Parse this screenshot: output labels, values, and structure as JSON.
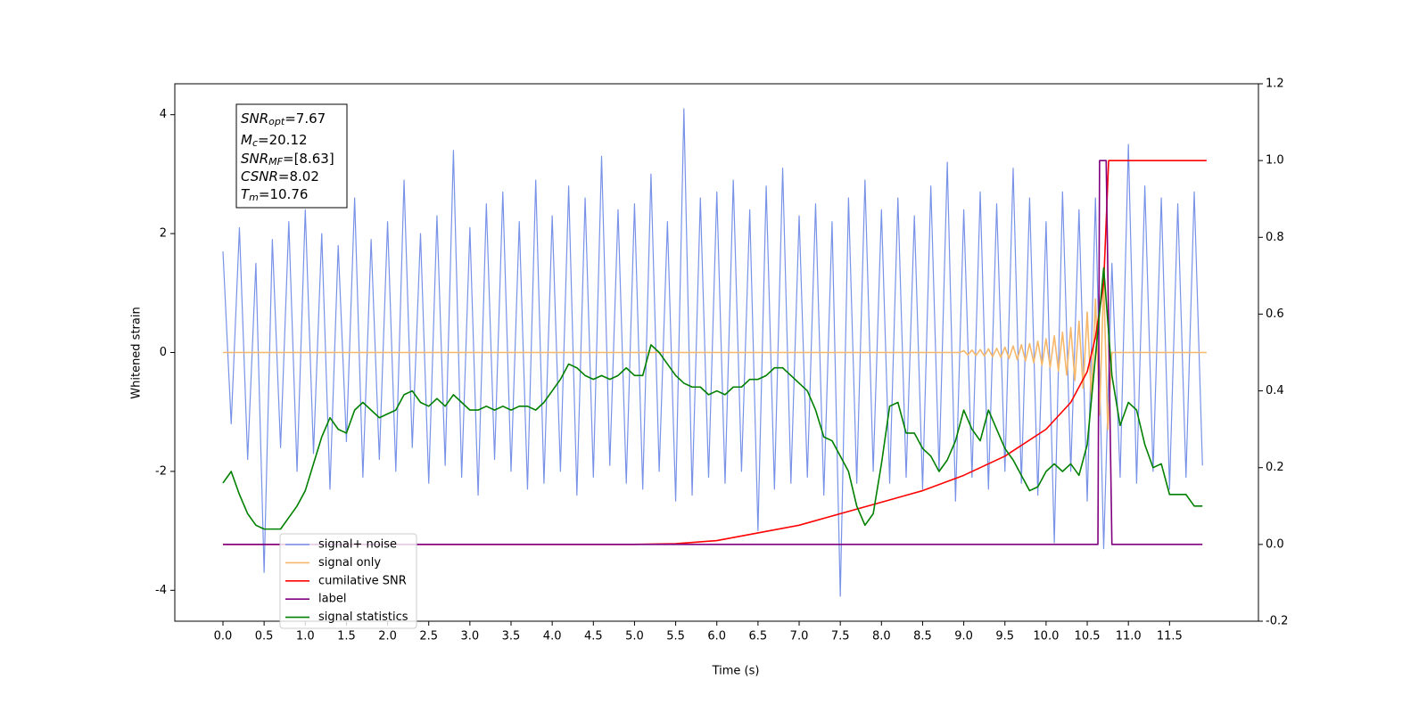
{
  "chart_data": {
    "type": "line",
    "xlabel": "Time (s)",
    "ylabel": "Whitened strain",
    "xlim": [
      -0.585,
      12.58
    ],
    "ylim": [
      -4.52,
      4.52
    ],
    "y2lim": [
      -0.2,
      1.2
    ],
    "xticks": [
      {
        "value": 0,
        "label": "0.0"
      },
      0.5,
      {
        "value": 1,
        "label": "1.0"
      },
      1.5,
      {
        "value": 2,
        "label": "2.0"
      },
      2.5,
      {
        "value": 3,
        "label": "3.0"
      },
      3.5,
      {
        "value": 4,
        "label": "4.0"
      },
      4.5,
      {
        "value": 5,
        "label": "5.0"
      },
      5.5,
      {
        "value": 6,
        "label": "6.0"
      },
      6.5,
      {
        "value": 7,
        "label": "7.0"
      },
      7.5,
      {
        "value": 8,
        "label": "8.0"
      },
      8.5,
      {
        "value": 9,
        "label": "9.0"
      },
      9.5,
      {
        "value": 10,
        "label": "10.0"
      },
      10.5,
      {
        "value": 11,
        "label": "11.0"
      },
      11.5
    ],
    "yticks": [
      -4,
      -2,
      0,
      2,
      4
    ],
    "y2ticks": [
      -0.2,
      {
        "value": 0,
        "label": "0.0"
      },
      0.2,
      0.4,
      0.6,
      0.8,
      {
        "value": 1,
        "label": "1.0"
      },
      1.2
    ],
    "legend": "lower left",
    "x": [
      0,
      0.1,
      0.2,
      0.3,
      0.4,
      0.5,
      0.6,
      0.7,
      0.8,
      0.9,
      1,
      1.1,
      1.2,
      1.3,
      1.4,
      1.5,
      1.6,
      1.7,
      1.8,
      1.9,
      2,
      2.1,
      2.2,
      2.3,
      2.4,
      2.5,
      2.6,
      2.7,
      2.8,
      2.9,
      3,
      3.1,
      3.2,
      3.3,
      3.4,
      3.5,
      3.6,
      3.7,
      3.8,
      3.9,
      4,
      4.1,
      4.2,
      4.3,
      4.4,
      4.5,
      4.6,
      4.7,
      4.8,
      4.9,
      5,
      5.1,
      5.2,
      5.3,
      5.4,
      5.5,
      5.6,
      5.7,
      5.8,
      5.9,
      6,
      6.1,
      6.2,
      6.3,
      6.4,
      6.5,
      6.6,
      6.7,
      6.8,
      6.9,
      7,
      7.1,
      7.2,
      7.3,
      7.4,
      7.5,
      7.6,
      7.7,
      7.8,
      7.9,
      8,
      8.1,
      8.2,
      8.3,
      8.4,
      8.5,
      8.6,
      8.7,
      8.8,
      8.9,
      9,
      9.1,
      9.2,
      9.3,
      9.4,
      9.5,
      9.6,
      9.7,
      9.8,
      9.9,
      10,
      10.1,
      10.2,
      10.3,
      10.4,
      10.5,
      10.6,
      10.7,
      10.8,
      10.9,
      11,
      11.1,
      11.2,
      11.3,
      11.4,
      11.5,
      11.6,
      11.7,
      11.8,
      11.9
    ],
    "series": [
      {
        "name": "signal+ noise",
        "color": "#7892e8",
        "values": [
          1.7,
          -1.2,
          2.1,
          -1.8,
          1.5,
          -3.7,
          1.9,
          -1.6,
          2.2,
          -2.0,
          2.4,
          -1.7,
          2.0,
          -2.3,
          1.8,
          -1.5,
          2.6,
          -2.1,
          1.9,
          -1.8,
          2.2,
          -2.0,
          2.9,
          -1.6,
          2.0,
          -2.2,
          2.3,
          -1.9,
          3.4,
          -2.1,
          2.1,
          -2.4,
          2.5,
          -1.8,
          2.7,
          -2.0,
          2.2,
          -2.3,
          2.9,
          -2.2,
          2.3,
          -2.0,
          2.8,
          -2.4,
          2.6,
          -2.1,
          3.3,
          -1.9,
          2.4,
          -2.2,
          2.5,
          -2.3,
          3.0,
          -2.0,
          2.2,
          -2.5,
          4.1,
          -2.4,
          2.6,
          -2.1,
          2.7,
          -2.2,
          2.9,
          -2.0,
          2.4,
          -3.0,
          2.8,
          -2.3,
          3.1,
          -2.2,
          2.3,
          -2.1,
          2.5,
          -2.4,
          2.2,
          -4.1,
          2.6,
          -2.2,
          2.9,
          -2.0,
          2.4,
          -2.2,
          2.6,
          -2.1,
          2.3,
          -2.3,
          2.8,
          -2.0,
          3.2,
          -2.5,
          2.4,
          -2.1,
          2.7,
          -2.3,
          2.5,
          -2.0,
          3.1,
          -2.2,
          2.6,
          -2.4,
          2.2,
          -3.2,
          2.7,
          -2.0,
          2.4,
          -2.5,
          2.6,
          -3.3,
          1.5,
          -2.1,
          3.5,
          -2.2,
          2.8,
          -2.0,
          2.6,
          -2.3,
          2.5,
          -2.1,
          2.7,
          -1.9
        ]
      },
      {
        "name": "signal only",
        "color": "#f5b86a",
        "x": [
          0,
          8.95,
          9.0,
          9.05,
          9.1,
          9.15,
          9.2,
          9.25,
          9.3,
          9.35,
          9.4,
          9.45,
          9.5,
          9.55,
          9.6,
          9.65,
          9.7,
          9.75,
          9.8,
          9.85,
          9.9,
          9.95,
          10.0,
          10.05,
          10.1,
          10.15,
          10.2,
          10.25,
          10.3,
          10.35,
          10.4,
          10.45,
          10.5,
          10.55,
          10.6,
          10.65,
          10.7,
          10.75,
          10.8,
          11.95
        ],
        "values": [
          0,
          0,
          0.03,
          -0.04,
          0.04,
          -0.05,
          0.05,
          -0.06,
          0.06,
          -0.07,
          0.07,
          -0.08,
          0.09,
          -0.1,
          0.11,
          -0.12,
          0.13,
          -0.14,
          0.15,
          -0.17,
          0.19,
          -0.21,
          0.23,
          -0.25,
          0.28,
          -0.31,
          0.34,
          -0.38,
          0.42,
          -0.47,
          0.53,
          -0.6,
          0.68,
          -0.78,
          0.9,
          -1.05,
          1.2,
          -1.3,
          0,
          0
        ]
      },
      {
        "name": "cumilative SNR",
        "color": "#ff0000",
        "axis": "y2",
        "x": [
          0,
          5,
          5.5,
          6,
          6.5,
          7,
          7.5,
          8,
          8.5,
          9,
          9.5,
          10,
          10.3,
          10.5,
          10.6,
          10.7,
          10.76,
          11.95
        ],
        "values": [
          0,
          0,
          0.002,
          0.01,
          0.03,
          0.05,
          0.08,
          0.11,
          0.14,
          0.18,
          0.23,
          0.3,
          0.37,
          0.45,
          0.54,
          0.68,
          1.0,
          1.0
        ]
      },
      {
        "name": "label",
        "color": "#800080",
        "axis": "y2",
        "x": [
          0,
          10.63,
          10.65,
          10.73,
          10.8,
          11.9
        ],
        "values": [
          0,
          0,
          1,
          1,
          0,
          0
        ]
      },
      {
        "name": "signal statistics",
        "color": "#008000",
        "axis": "y2",
        "values": [
          0.16,
          0.19,
          0.13,
          0.08,
          0.05,
          0.04,
          0.04,
          0.04,
          0.07,
          0.1,
          0.14,
          0.21,
          0.28,
          0.33,
          0.3,
          0.29,
          0.35,
          0.37,
          0.35,
          0.33,
          0.34,
          0.35,
          0.39,
          0.4,
          0.37,
          0.36,
          0.38,
          0.36,
          0.39,
          0.37,
          0.35,
          0.35,
          0.36,
          0.35,
          0.36,
          0.35,
          0.36,
          0.36,
          0.35,
          0.37,
          0.4,
          0.43,
          0.47,
          0.46,
          0.44,
          0.43,
          0.44,
          0.43,
          0.44,
          0.46,
          0.44,
          0.44,
          0.52,
          0.5,
          0.47,
          0.44,
          0.42,
          0.41,
          0.41,
          0.39,
          0.4,
          0.39,
          0.41,
          0.41,
          0.43,
          0.43,
          0.44,
          0.46,
          0.46,
          0.44,
          0.42,
          0.4,
          0.35,
          0.28,
          0.27,
          0.23,
          0.19,
          0.1,
          0.05,
          0.08,
          0.21,
          0.36,
          0.37,
          0.29,
          0.29,
          0.25,
          0.23,
          0.19,
          0.22,
          0.27,
          0.35,
          0.3,
          0.27,
          0.35,
          0.3,
          0.25,
          0.22,
          0.18,
          0.14,
          0.15,
          0.19,
          0.21,
          0.19,
          0.21,
          0.18,
          0.26,
          0.49,
          0.72,
          0.44,
          0.31,
          0.37,
          0.35,
          0.26,
          0.2,
          0.21,
          0.13,
          0.13,
          0.13,
          0.1,
          0.1
        ]
      }
    ],
    "annotation": [
      {
        "symbol": "SNR",
        "sub": "opt",
        "text": "=7.67"
      },
      {
        "symbol": "M",
        "sub": "c",
        "text": "=20.12"
      },
      {
        "symbol": "SNR",
        "sub": "MF",
        "text": "=[8.63]"
      },
      {
        "symbol": "CSNR",
        "text": "=8.02"
      },
      {
        "symbol": "T",
        "sub": "m",
        "text": "=10.76"
      }
    ]
  }
}
